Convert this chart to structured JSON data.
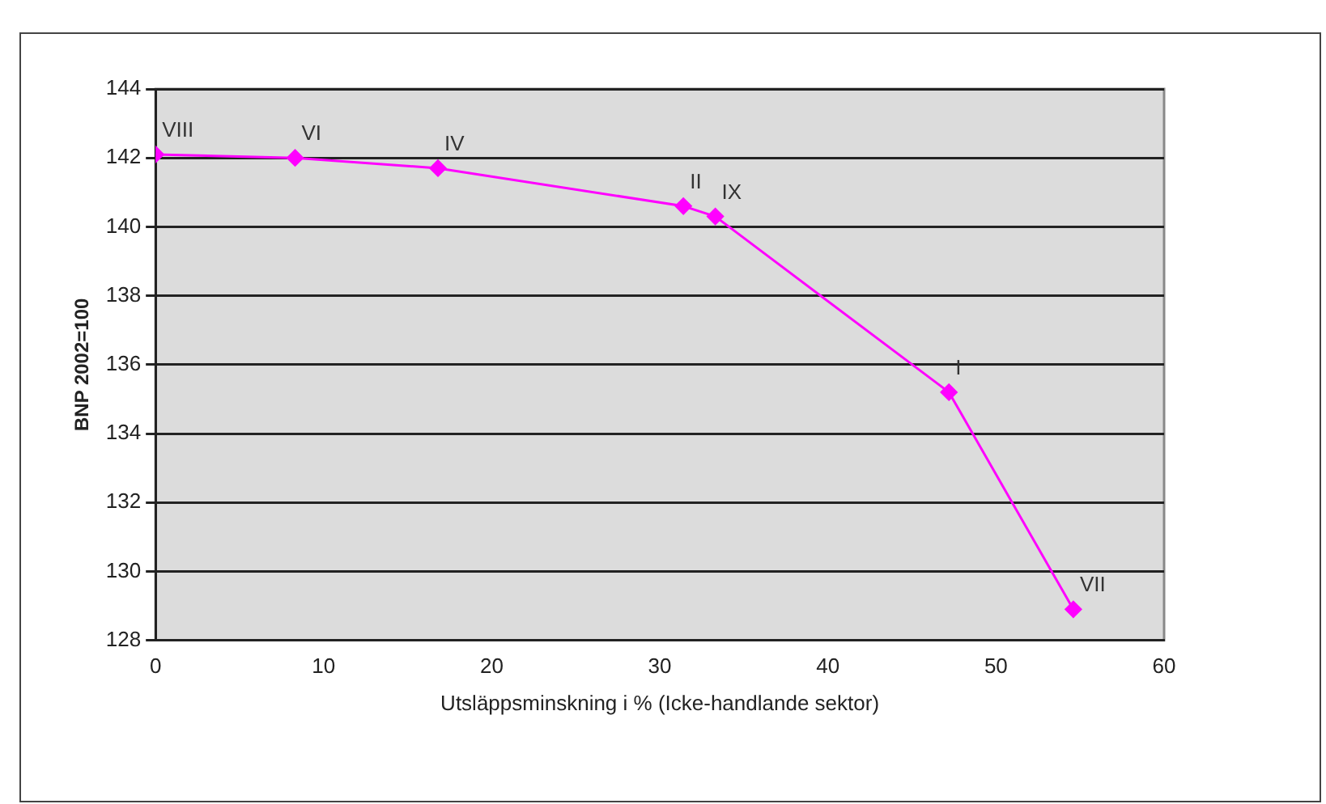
{
  "chart_data": {
    "type": "line",
    "xlabel": "Utsläppsminskning i % (Icke-handlande sektor)",
    "ylabel": "BNP 2002=100",
    "x": [
      0,
      8.3,
      16.8,
      31.4,
      33.3,
      47.2,
      54.6
    ],
    "series": [
      {
        "color": "#ff00ff",
        "values": [
          142.1,
          142.0,
          141.7,
          140.6,
          140.3,
          135.2,
          128.9
        ]
      }
    ],
    "xlim": [
      0,
      60
    ],
    "xticks": [
      0,
      10,
      20,
      30,
      40,
      50,
      60
    ],
    "ylim": [
      128,
      144
    ],
    "yticks": [
      128,
      130,
      132,
      134,
      136,
      138,
      140,
      142,
      144
    ],
    "grid": "y",
    "legend": false,
    "marker": "diamond",
    "line_style": "solid",
    "annotations": [
      {
        "text": "VIII",
        "x": 0,
        "y": 142.1
      },
      {
        "text": "VI",
        "x": 8.3,
        "y": 142.0
      },
      {
        "text": "IV",
        "x": 16.8,
        "y": 141.7
      },
      {
        "text": "II",
        "x": 31.4,
        "y": 140.6
      },
      {
        "text": "IX",
        "x": 33.3,
        "y": 140.3
      },
      {
        "text": "I",
        "x": 47.2,
        "y": 135.2
      },
      {
        "text": "VII",
        "x": 54.6,
        "y": 128.9
      }
    ]
  }
}
